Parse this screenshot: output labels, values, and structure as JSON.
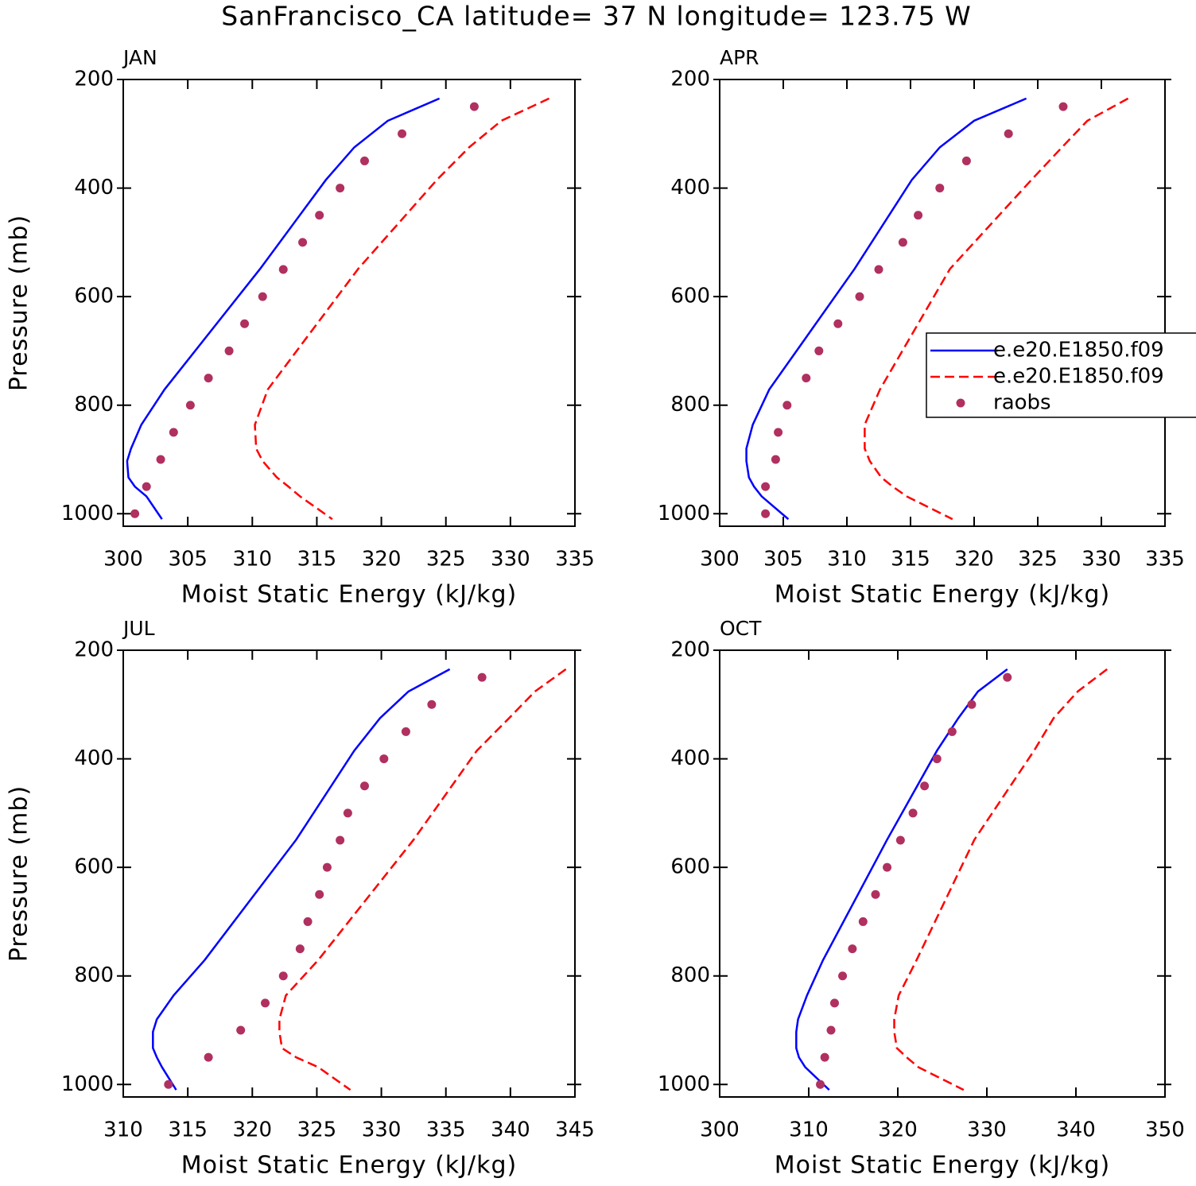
{
  "title": "SanFrancisco_CA  latitude= 37 N longitude= 123.75 W",
  "chart_data": [
    {
      "type": "line",
      "title": "JAN",
      "xlabel": "Moist Static Energy (kJ/kg)",
      "ylabel": "Pressure (mb)",
      "xlim": [
        300,
        335
      ],
      "xticks": [
        300,
        305,
        310,
        315,
        320,
        325,
        330,
        335
      ],
      "ylim": [
        200,
        1023
      ],
      "y_inverted": true,
      "yticks": [
        200,
        400,
        600,
        800,
        1000
      ],
      "series": [
        {
          "color": "#0000ff",
          "style": "solid",
          "x": [
            324.5,
            320.5,
            317.9,
            315.7,
            310.6,
            303.2,
            301.4,
            300.6,
            300.3,
            300.4,
            300.9,
            301.8,
            303.0
          ],
          "y": [
            235,
            276,
            325,
            385,
            549,
            771,
            836,
            880,
            903,
            933,
            950,
            968,
            1010
          ]
        },
        {
          "color": "#ff0000",
          "style": "dash",
          "x": [
            333.0,
            329.3,
            326.8,
            324.3,
            318.2,
            311.2,
            310.2,
            310.3,
            310.8,
            311.9,
            312.8,
            313.7,
            316.2
          ],
          "y": [
            235,
            276,
            325,
            385,
            549,
            771,
            836,
            880,
            903,
            933,
            950,
            968,
            1010
          ]
        },
        {
          "color": "#b03060",
          "style": "dot",
          "x": [
            327.2,
            321.6,
            318.7,
            316.8,
            315.2,
            313.9,
            312.4,
            310.8,
            309.4,
            308.2,
            306.6,
            305.2,
            303.9,
            302.9,
            301.8,
            300.9
          ],
          "y": [
            250,
            300,
            350,
            400,
            450,
            500,
            550,
            600,
            650,
            700,
            750,
            800,
            850,
            900,
            950,
            1000
          ]
        }
      ]
    },
    {
      "type": "line",
      "title": "APR",
      "xlabel": "Moist Static Energy (kJ/kg)",
      "xlim": [
        300,
        335
      ],
      "xticks": [
        300,
        305,
        310,
        315,
        320,
        325,
        330,
        335
      ],
      "ylim": [
        200,
        1023
      ],
      "y_inverted": true,
      "yticks": [
        200,
        400,
        600,
        800,
        1000
      ],
      "legend": "center right",
      "series": [
        {
          "name": "e.e20.E1850.f09",
          "color": "#0000ff",
          "style": "solid",
          "x": [
            324.1,
            320.0,
            317.3,
            315.1,
            310.6,
            303.9,
            302.6,
            302.1,
            302.1,
            302.3,
            302.7,
            303.3,
            305.4
          ],
          "y": [
            235,
            276,
            325,
            385,
            549,
            771,
            836,
            880,
            903,
            933,
            950,
            968,
            1010
          ]
        },
        {
          "name": "e.e20.E1850.f09",
          "color": "#ff0000",
          "style": "dash",
          "x": [
            332.1,
            328.9,
            326.9,
            324.5,
            318.1,
            312.6,
            311.4,
            311.4,
            311.8,
            312.7,
            313.6,
            314.7,
            318.3
          ],
          "y": [
            235,
            276,
            325,
            385,
            549,
            771,
            836,
            880,
            903,
            933,
            950,
            968,
            1010
          ]
        },
        {
          "name": "raobs",
          "color": "#b03060",
          "style": "dot",
          "x": [
            327.0,
            322.7,
            319.4,
            317.3,
            315.6,
            314.4,
            312.5,
            311.0,
            309.3,
            307.8,
            306.8,
            305.3,
            304.6,
            304.4,
            303.6,
            303.6
          ],
          "y": [
            250,
            300,
            350,
            400,
            450,
            500,
            550,
            600,
            650,
            700,
            750,
            800,
            850,
            900,
            950,
            1000
          ]
        }
      ]
    },
    {
      "type": "line",
      "title": "JUL",
      "xlabel": "Moist Static Energy (kJ/kg)",
      "ylabel": "Pressure (mb)",
      "xlim": [
        310,
        345
      ],
      "xticks": [
        310,
        315,
        320,
        325,
        330,
        335,
        340,
        345
      ],
      "ylim": [
        200,
        1023
      ],
      "y_inverted": true,
      "yticks": [
        200,
        400,
        600,
        800,
        1000
      ],
      "series": [
        {
          "color": "#0000ff",
          "style": "solid",
          "x": [
            335.3,
            332.1,
            329.9,
            327.9,
            323.4,
            316.3,
            313.9,
            312.6,
            312.3,
            312.3,
            312.6,
            313.0,
            314.1
          ],
          "y": [
            235,
            276,
            325,
            385,
            549,
            771,
            836,
            880,
            903,
            933,
            950,
            968,
            1010
          ]
        },
        {
          "color": "#ff0000",
          "style": "dash",
          "x": [
            344.3,
            341.9,
            339.9,
            337.4,
            332.5,
            325.1,
            322.6,
            322.1,
            322.1,
            322.3,
            323.4,
            325.1,
            327.6
          ],
          "y": [
            235,
            276,
            325,
            385,
            549,
            771,
            836,
            880,
            903,
            933,
            950,
            968,
            1010
          ]
        },
        {
          "color": "#b03060",
          "style": "dot",
          "x": [
            337.8,
            333.9,
            331.9,
            330.2,
            328.7,
            327.4,
            326.8,
            325.8,
            325.2,
            324.3,
            323.7,
            322.4,
            321.0,
            319.1,
            316.6,
            313.5
          ],
          "y": [
            250,
            300,
            350,
            400,
            450,
            500,
            550,
            600,
            650,
            700,
            750,
            800,
            850,
            900,
            950,
            1000
          ]
        }
      ]
    },
    {
      "type": "line",
      "title": "OCT",
      "xlabel": "Moist Static Energy (kJ/kg)",
      "xlim": [
        300,
        350
      ],
      "xticks": [
        300,
        310,
        320,
        330,
        340,
        350
      ],
      "ylim": [
        200,
        1023
      ],
      "y_inverted": true,
      "yticks": [
        200,
        400,
        600,
        800,
        1000
      ],
      "series": [
        {
          "color": "#0000ff",
          "style": "solid",
          "x": [
            332.3,
            329.0,
            326.8,
            324.4,
            318.8,
            311.6,
            309.8,
            308.8,
            308.6,
            308.6,
            308.9,
            309.6,
            312.3
          ],
          "y": [
            235,
            276,
            325,
            385,
            549,
            771,
            836,
            880,
            903,
            933,
            950,
            968,
            1010
          ]
        },
        {
          "color": "#ff0000",
          "style": "dash",
          "x": [
            343.5,
            340.2,
            337.5,
            335.3,
            328.6,
            322.1,
            320.1,
            319.6,
            319.6,
            319.9,
            321.0,
            322.3,
            327.4
          ],
          "y": [
            235,
            276,
            325,
            385,
            549,
            771,
            836,
            880,
            903,
            933,
            950,
            968,
            1010
          ]
        },
        {
          "color": "#b03060",
          "style": "dot",
          "x": [
            332.3,
            328.3,
            326.1,
            324.4,
            323.0,
            321.7,
            320.3,
            318.8,
            317.5,
            316.1,
            314.9,
            313.8,
            312.9,
            312.5,
            311.8,
            311.3
          ],
          "y": [
            250,
            300,
            350,
            400,
            450,
            500,
            550,
            600,
            650,
            700,
            750,
            800,
            850,
            900,
            950,
            1000
          ]
        }
      ]
    }
  ]
}
